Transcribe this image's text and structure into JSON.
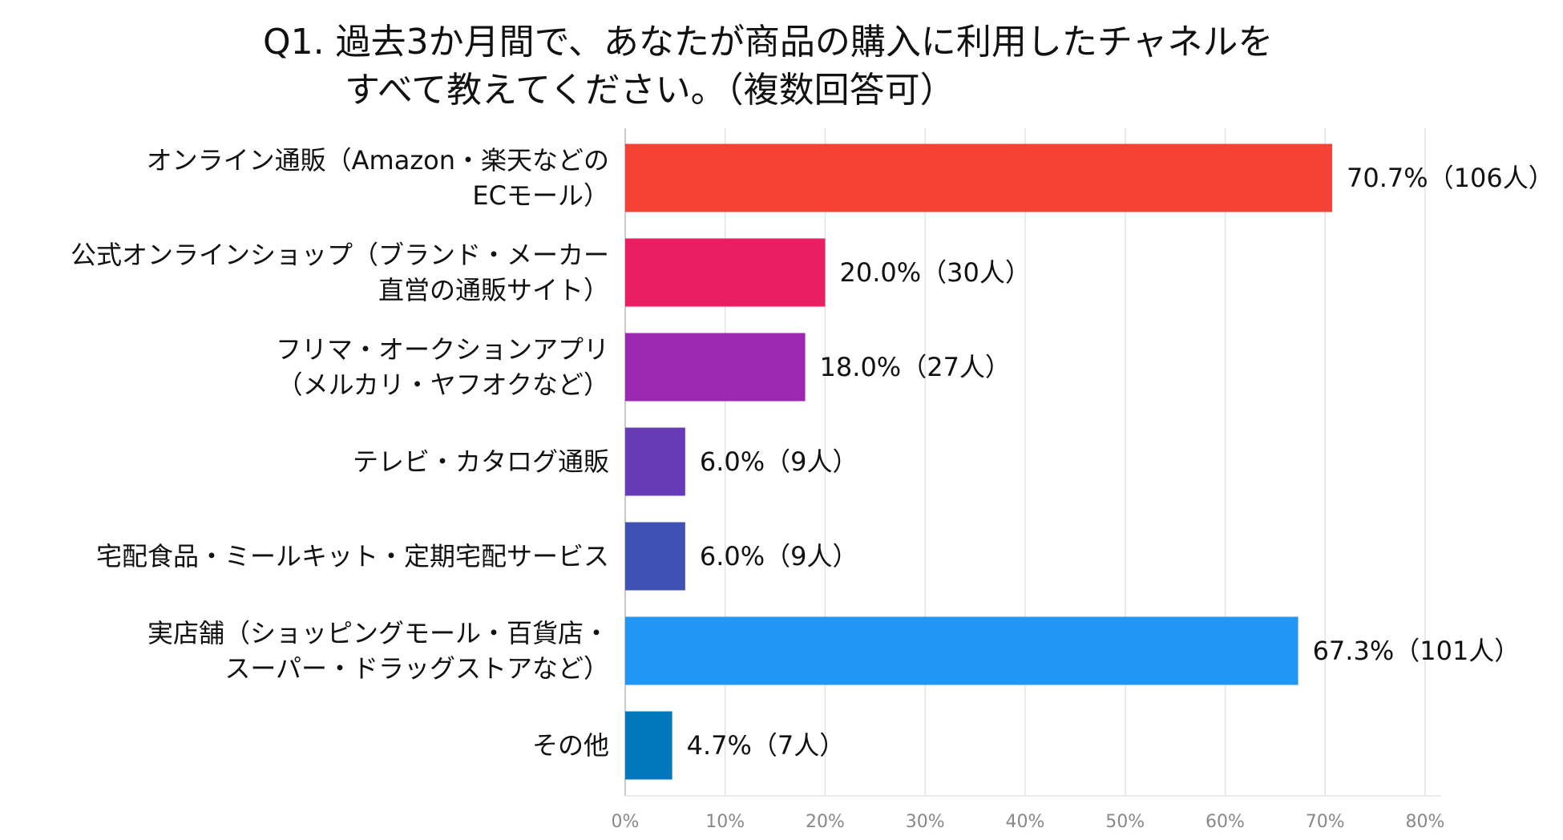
{
  "chart_data": {
    "type": "bar",
    "orientation": "horizontal",
    "title": [
      "Q1. 過去3か月間で、あなたが商品の購入に利用したチャネルを",
      "すべて教えてください。（複数回答可）"
    ],
    "categories": [
      [
        "オンライン通販（Amazon・楽天などの",
        "ECモール）"
      ],
      [
        "公式オンラインショップ（ブランド・メーカー",
        "直営の通販サイト）"
      ],
      [
        "フリマ・オークションアプリ",
        "（メルカリ・ヤフオクなど）"
      ],
      [
        "テレビ・カタログ通販"
      ],
      [
        "宅配食品・ミールキット・定期宅配サービス"
      ],
      [
        "実店舗（ショッピングモール・百貨店・",
        "スーパー・ドラッグストアなど）"
      ],
      [
        "その他"
      ]
    ],
    "values": [
      70.7,
      20.0,
      18.0,
      6.0,
      6.0,
      67.3,
      4.7
    ],
    "data_labels": [
      "70.7%（106人）",
      "20.0%（30人）",
      "18.0%（27人）",
      "6.0%（9人）",
      "6.0%（9人）",
      "67.3%（101人）",
      "4.7%（7人）"
    ],
    "colors": [
      "#f44336",
      "#e91e63",
      "#9c27b0",
      "#673ab7",
      "#3f51b5",
      "#2196f3",
      "#0277bd"
    ],
    "xlim": [
      0,
      80
    ],
    "x_ticks": [
      0,
      10,
      20,
      30,
      40,
      50,
      60,
      70,
      80
    ],
    "x_tick_labels": [
      "0%",
      "10%",
      "20%",
      "30%",
      "40%",
      "50%",
      "60%",
      "70%",
      "80%"
    ],
    "grid": true,
    "legend": "none",
    "xlabel": "",
    "ylabel": ""
  }
}
